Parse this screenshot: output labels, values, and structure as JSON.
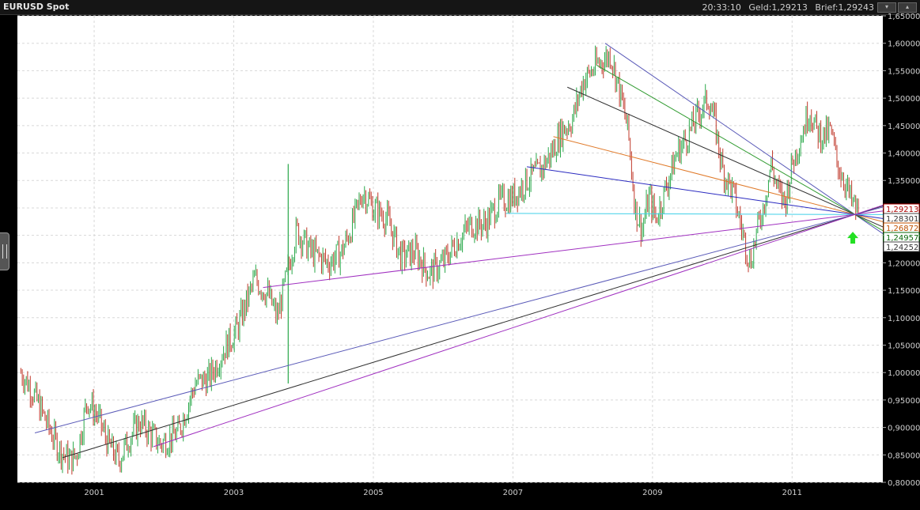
{
  "header": {
    "title": "EURUSD Spot",
    "time": "20:33:10",
    "bid": "Geld:1,29213",
    "ask": "Brief:1,29243"
  },
  "chart_data": {
    "type": "candlestick",
    "title": "EURUSD Spot",
    "ylim": [
      0.8,
      1.65
    ],
    "y_ticks": [
      "0,80000",
      "0,85000",
      "0,90000",
      "0,95000",
      "1,00000",
      "1,05000",
      "1,10000",
      "1,15000",
      "1,20000",
      "1,25000",
      "1,30000",
      "1,35000",
      "1,40000",
      "1,45000",
      "1,50000",
      "1,55000",
      "1,60000",
      "1,65000"
    ],
    "x_ticks": [
      "2001",
      "2003",
      "2005",
      "2007",
      "2009",
      "2011"
    ],
    "price_path": [
      [
        2000.05,
        1.0
      ],
      [
        2000.2,
        0.97
      ],
      [
        2000.45,
        0.9
      ],
      [
        2000.6,
        0.86
      ],
      [
        2000.75,
        0.84
      ],
      [
        2000.85,
        0.85
      ],
      [
        2001.0,
        0.95
      ],
      [
        2001.15,
        0.92
      ],
      [
        2001.3,
        0.87
      ],
      [
        2001.45,
        0.84
      ],
      [
        2001.6,
        0.88
      ],
      [
        2001.75,
        0.91
      ],
      [
        2001.9,
        0.89
      ],
      [
        2002.05,
        0.87
      ],
      [
        2002.3,
        0.89
      ],
      [
        2002.55,
        0.98
      ],
      [
        2002.75,
        0.99
      ],
      [
        2002.95,
        1.04
      ],
      [
        2003.15,
        1.08
      ],
      [
        2003.4,
        1.17
      ],
      [
        2003.6,
        1.14
      ],
      [
        2003.72,
        1.1
      ],
      [
        2003.85,
        1.17
      ],
      [
        2004.0,
        1.26
      ],
      [
        2004.2,
        1.22
      ],
      [
        2004.45,
        1.2
      ],
      [
        2004.65,
        1.22
      ],
      [
        2004.8,
        1.27
      ],
      [
        2004.95,
        1.33
      ],
      [
        2005.1,
        1.3
      ],
      [
        2005.3,
        1.28
      ],
      [
        2005.5,
        1.21
      ],
      [
        2005.7,
        1.22
      ],
      [
        2005.9,
        1.18
      ],
      [
        2006.1,
        1.2
      ],
      [
        2006.3,
        1.24
      ],
      [
        2006.5,
        1.27
      ],
      [
        2006.7,
        1.27
      ],
      [
        2006.9,
        1.31
      ],
      [
        2007.1,
        1.32
      ],
      [
        2007.3,
        1.35
      ],
      [
        2007.5,
        1.37
      ],
      [
        2007.65,
        1.4
      ],
      [
        2007.8,
        1.44
      ],
      [
        2007.95,
        1.46
      ],
      [
        2008.1,
        1.53
      ],
      [
        2008.3,
        1.56
      ],
      [
        2008.5,
        1.58
      ],
      [
        2008.65,
        1.5
      ],
      [
        2008.75,
        1.44
      ],
      [
        2008.85,
        1.3
      ],
      [
        2008.95,
        1.26
      ],
      [
        2009.05,
        1.32
      ],
      [
        2009.15,
        1.28
      ],
      [
        2009.25,
        1.32
      ],
      [
        2009.45,
        1.4
      ],
      [
        2009.6,
        1.43
      ],
      [
        2009.75,
        1.47
      ],
      [
        2009.9,
        1.5
      ],
      [
        2010.0,
        1.45
      ],
      [
        2010.1,
        1.37
      ],
      [
        2010.25,
        1.33
      ],
      [
        2010.4,
        1.25
      ],
      [
        2010.5,
        1.2
      ],
      [
        2010.6,
        1.26
      ],
      [
        2010.7,
        1.31
      ],
      [
        2010.8,
        1.38
      ],
      [
        2010.9,
        1.33
      ],
      [
        2011.0,
        1.31
      ],
      [
        2011.1,
        1.38
      ],
      [
        2011.25,
        1.44
      ],
      [
        2011.35,
        1.48
      ],
      [
        2011.45,
        1.44
      ],
      [
        2011.55,
        1.43
      ],
      [
        2011.65,
        1.44
      ],
      [
        2011.75,
        1.38
      ],
      [
        2011.85,
        1.35
      ],
      [
        2011.95,
        1.31
      ],
      [
        2012.05,
        1.29
      ]
    ],
    "spike": {
      "x": 2003.88,
      "high": 1.38,
      "low": 0.98
    },
    "fan_lines": [
      {
        "color": "#5a5ab8",
        "from": [
          2008.42,
          1.6
        ]
      },
      {
        "color": "#2e9a2e",
        "from": [
          2008.3,
          1.56
        ]
      },
      {
        "color": "#303030",
        "from": [
          2007.88,
          1.52
        ]
      },
      {
        "color": "#e07a2a",
        "from": [
          2007.68,
          1.43
        ]
      },
      {
        "color": "#2a2ac0",
        "from": [
          2007.3,
          1.375
        ]
      },
      {
        "color": "#40d0e8",
        "from": [
          2007.0,
          1.29
        ]
      },
      {
        "color": "#a030c0",
        "from": [
          2003.52,
          1.155
        ]
      },
      {
        "color": "#5a5ab8",
        "from": [
          2000.25,
          0.89
        ]
      },
      {
        "color": "#303030",
        "from": [
          2000.65,
          0.845
        ]
      },
      {
        "color": "#a030c0",
        "from": [
          2001.95,
          0.865
        ]
      }
    ],
    "fan_target": [
      2012.0,
      1.288
    ],
    "price_labels": [
      {
        "text": "1,29213",
        "color": "#b00000",
        "bg": "#ffffff",
        "border": "#b00000"
      },
      {
        "text": "1,28301",
        "color": "#333333",
        "bg": "#ffffff",
        "border": "#444444"
      },
      {
        "text": "1,26872",
        "color": "#c05000",
        "bg": "#ffffff",
        "border": "#c05000"
      },
      {
        "text": "1,24957",
        "color": "#0a6a0a",
        "bg": "#ffffff",
        "border": "#0a6a0a"
      },
      {
        "text": "1,24252",
        "color": "#333333",
        "bg": "#ffffff",
        "border": "#444444"
      }
    ],
    "marker": {
      "type": "up-arrow",
      "color": "#22e022",
      "at": [
        2011.97,
        1.245
      ]
    }
  }
}
